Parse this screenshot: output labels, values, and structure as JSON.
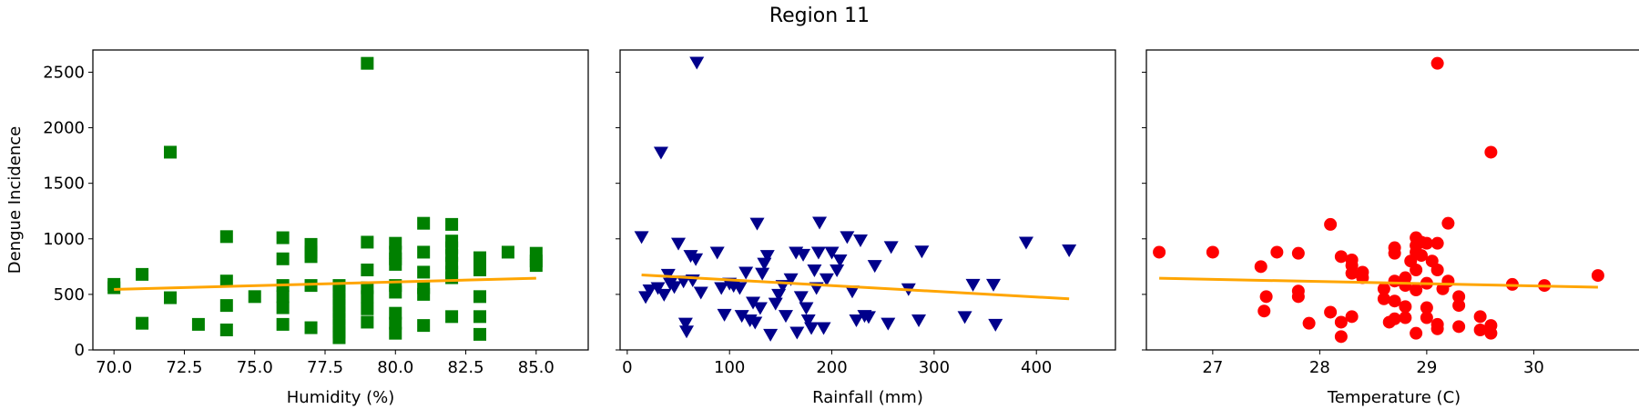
{
  "chart_data": {
    "title": "Region 11",
    "ylabel": "Dengue Incidence",
    "ylim": [
      0,
      2700
    ],
    "yticks": [
      0,
      500,
      1000,
      1500,
      2000,
      2500
    ],
    "fit_color": "#ffa500",
    "panels": [
      {
        "type": "scatter",
        "xlabel": "Humidity (%)",
        "xlim": [
          69.25,
          85.75
        ],
        "xticks": [
          70.0,
          72.5,
          75.0,
          77.5,
          80.0,
          82.5,
          85.0
        ],
        "xtick_labels": [
          "70.0",
          "72.5",
          "75.0",
          "77.5",
          "80.0",
          "82.5",
          "85.0"
        ],
        "marker": "square",
        "color": "#008000",
        "points": [
          [
            70,
            590
          ],
          [
            70,
            560
          ],
          [
            71,
            680
          ],
          [
            71,
            240
          ],
          [
            72,
            1780
          ],
          [
            72,
            470
          ],
          [
            73,
            230
          ],
          [
            74,
            1020
          ],
          [
            74,
            620
          ],
          [
            74,
            400
          ],
          [
            74,
            180
          ],
          [
            75,
            480
          ],
          [
            76,
            1010
          ],
          [
            76,
            820
          ],
          [
            76,
            580
          ],
          [
            76,
            480
          ],
          [
            76,
            380
          ],
          [
            76,
            230
          ],
          [
            77,
            950
          ],
          [
            77,
            880
          ],
          [
            77,
            840
          ],
          [
            77,
            580
          ],
          [
            77,
            200
          ],
          [
            78,
            580
          ],
          [
            78,
            520
          ],
          [
            78,
            460
          ],
          [
            78,
            400
          ],
          [
            78,
            340
          ],
          [
            78,
            280
          ],
          [
            78,
            220
          ],
          [
            78,
            160
          ],
          [
            78,
            110
          ],
          [
            79,
            2580
          ],
          [
            79,
            970
          ],
          [
            79,
            720
          ],
          [
            79,
            560
          ],
          [
            79,
            480
          ],
          [
            79,
            370
          ],
          [
            79,
            250
          ],
          [
            80,
            960
          ],
          [
            80,
            880
          ],
          [
            80,
            820
          ],
          [
            80,
            770
          ],
          [
            80,
            580
          ],
          [
            80,
            520
          ],
          [
            80,
            330
          ],
          [
            80,
            240
          ],
          [
            80,
            150
          ],
          [
            81,
            1140
          ],
          [
            81,
            880
          ],
          [
            81,
            700
          ],
          [
            81,
            560
          ],
          [
            81,
            500
          ],
          [
            81,
            220
          ],
          [
            82,
            1130
          ],
          [
            82,
            980
          ],
          [
            82,
            920
          ],
          [
            82,
            850
          ],
          [
            82,
            780
          ],
          [
            82,
            700
          ],
          [
            82,
            650
          ],
          [
            82,
            300
          ],
          [
            83,
            830
          ],
          [
            83,
            720
          ],
          [
            83,
            480
          ],
          [
            83,
            300
          ],
          [
            83,
            140
          ],
          [
            84,
            880
          ],
          [
            85,
            870
          ],
          [
            85,
            800
          ],
          [
            85,
            760
          ]
        ],
        "fit": {
          "x": [
            70,
            85
          ],
          "y": [
            545,
            645
          ]
        }
      },
      {
        "type": "scatter",
        "xlabel": "Rainfall (mm)",
        "xlim": [
          -7,
          447
        ],
        "xticks": [
          0,
          100,
          200,
          300,
          400
        ],
        "xtick_labels": [
          "0",
          "100",
          "200",
          "300",
          "400"
        ],
        "marker": "triangle-down",
        "color": "#00008b",
        "points": [
          [
            14,
            1020
          ],
          [
            18,
            480
          ],
          [
            22,
            540
          ],
          [
            30,
            560
          ],
          [
            33,
            1780
          ],
          [
            36,
            500
          ],
          [
            40,
            680
          ],
          [
            42,
            600
          ],
          [
            46,
            570
          ],
          [
            50,
            960
          ],
          [
            55,
            620
          ],
          [
            57,
            240
          ],
          [
            58,
            170
          ],
          [
            62,
            850
          ],
          [
            64,
            630
          ],
          [
            67,
            820
          ],
          [
            68,
            2590
          ],
          [
            72,
            520
          ],
          [
            88,
            880
          ],
          [
            92,
            560
          ],
          [
            95,
            320
          ],
          [
            100,
            600
          ],
          [
            104,
            580
          ],
          [
            110,
            560
          ],
          [
            112,
            310
          ],
          [
            116,
            700
          ],
          [
            120,
            270
          ],
          [
            123,
            430
          ],
          [
            125,
            250
          ],
          [
            127,
            1140
          ],
          [
            130,
            380
          ],
          [
            132,
            690
          ],
          [
            134,
            780
          ],
          [
            137,
            850
          ],
          [
            140,
            140
          ],
          [
            145,
            420
          ],
          [
            148,
            500
          ],
          [
            152,
            580
          ],
          [
            155,
            310
          ],
          [
            160,
            640
          ],
          [
            165,
            880
          ],
          [
            166,
            160
          ],
          [
            170,
            480
          ],
          [
            172,
            860
          ],
          [
            175,
            380
          ],
          [
            177,
            270
          ],
          [
            180,
            200
          ],
          [
            183,
            720
          ],
          [
            185,
            560
          ],
          [
            187,
            880
          ],
          [
            188,
            1150
          ],
          [
            192,
            200
          ],
          [
            195,
            640
          ],
          [
            200,
            880
          ],
          [
            205,
            720
          ],
          [
            208,
            810
          ],
          [
            215,
            1020
          ],
          [
            220,
            530
          ],
          [
            224,
            270
          ],
          [
            228,
            990
          ],
          [
            232,
            310
          ],
          [
            236,
            300
          ],
          [
            242,
            760
          ],
          [
            255,
            240
          ],
          [
            258,
            930
          ],
          [
            275,
            550
          ],
          [
            285,
            270
          ],
          [
            288,
            890
          ],
          [
            330,
            300
          ],
          [
            338,
            590
          ],
          [
            358,
            590
          ],
          [
            360,
            230
          ],
          [
            390,
            970
          ],
          [
            432,
            900
          ]
        ],
        "fit": {
          "x": [
            14,
            432
          ],
          "y": [
            675,
            460
          ]
        }
      },
      {
        "type": "scatter",
        "xlabel": "Temperature (C)",
        "xlim": [
          26.38,
          30.72
        ],
        "xticks": [
          27,
          28,
          29,
          30
        ],
        "xtick_labels": [
          "27",
          "28",
          "29",
          "30"
        ],
        "marker": "circle",
        "color": "#ff0000",
        "points": [
          [
            26.5,
            880
          ],
          [
            27.0,
            880
          ],
          [
            27.45,
            750
          ],
          [
            27.48,
            350
          ],
          [
            27.5,
            480
          ],
          [
            27.6,
            880
          ],
          [
            27.8,
            870
          ],
          [
            27.8,
            530
          ],
          [
            27.8,
            480
          ],
          [
            27.9,
            240
          ],
          [
            28.1,
            1130
          ],
          [
            28.1,
            340
          ],
          [
            28.2,
            840
          ],
          [
            28.2,
            250
          ],
          [
            28.2,
            120
          ],
          [
            28.3,
            810
          ],
          [
            28.3,
            760
          ],
          [
            28.3,
            300
          ],
          [
            28.3,
            690
          ],
          [
            28.4,
            700
          ],
          [
            28.4,
            650
          ],
          [
            28.6,
            550
          ],
          [
            28.6,
            460
          ],
          [
            28.65,
            250
          ],
          [
            28.7,
            920
          ],
          [
            28.7,
            870
          ],
          [
            28.7,
            620
          ],
          [
            28.7,
            440
          ],
          [
            28.7,
            280
          ],
          [
            28.8,
            650
          ],
          [
            28.8,
            580
          ],
          [
            28.8,
            390
          ],
          [
            28.8,
            290
          ],
          [
            28.85,
            800
          ],
          [
            28.9,
            1010
          ],
          [
            28.9,
            940
          ],
          [
            28.9,
            880
          ],
          [
            28.9,
            720
          ],
          [
            28.9,
            540
          ],
          [
            28.9,
            150
          ],
          [
            28.95,
            970
          ],
          [
            28.95,
            850
          ],
          [
            29.0,
            960
          ],
          [
            29.0,
            600
          ],
          [
            29.0,
            380
          ],
          [
            29.0,
            290
          ],
          [
            29.05,
            800
          ],
          [
            29.1,
            2580
          ],
          [
            29.1,
            960
          ],
          [
            29.1,
            720
          ],
          [
            29.1,
            230
          ],
          [
            29.1,
            190
          ],
          [
            29.15,
            550
          ],
          [
            29.2,
            1140
          ],
          [
            29.2,
            620
          ],
          [
            29.3,
            480
          ],
          [
            29.3,
            400
          ],
          [
            29.3,
            210
          ],
          [
            29.5,
            300
          ],
          [
            29.5,
            180
          ],
          [
            29.6,
            1780
          ],
          [
            29.6,
            220
          ],
          [
            29.6,
            150
          ],
          [
            29.8,
            590
          ],
          [
            30.1,
            580
          ],
          [
            30.6,
            670
          ]
        ],
        "fit": {
          "x": [
            26.5,
            30.6
          ],
          "y": [
            645,
            565
          ]
        }
      }
    ]
  }
}
